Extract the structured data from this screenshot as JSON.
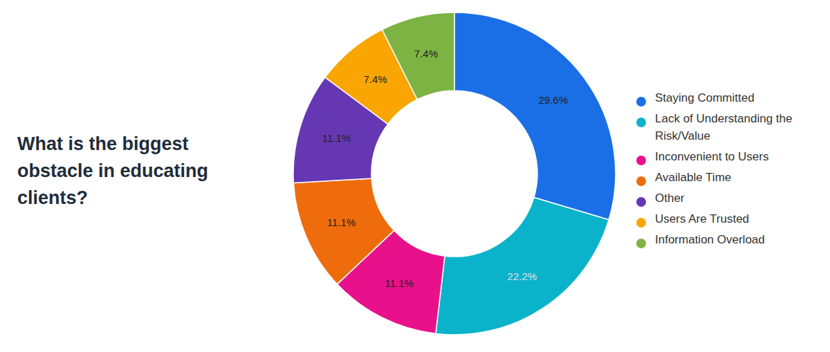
{
  "chart_data": {
    "type": "donut",
    "title": "What is the biggest obstacle in educating clients?",
    "categories": [
      "Staying Committed",
      "Lack of Understanding the Risk/Value",
      "Inconvenient to Users",
      "Available Time",
      "Other",
      "Users Are Trusted",
      "Information Overload"
    ],
    "values": [
      29.6,
      22.2,
      11.1,
      11.1,
      11.1,
      7.4,
      7.4
    ],
    "value_labels": [
      "29.6%",
      "22.2%",
      "11.1%",
      "11.1%",
      "11.1%",
      "7.4%",
      "7.4%"
    ],
    "colors": [
      "#1a6fe6",
      "#0ab3c9",
      "#e8118b",
      "#ef6c0c",
      "#6637b3",
      "#f9a602",
      "#7cb342"
    ],
    "data_labels": true,
    "legend": "right"
  }
}
